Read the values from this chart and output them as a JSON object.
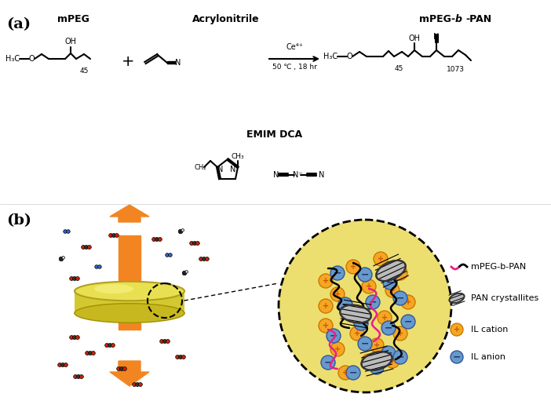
{
  "bg_color": "#ffffff",
  "panel_a_label": "(a)",
  "panel_b_label": "(b)",
  "label_fontsize": 14,
  "title_a1": "mPEG",
  "title_a2": "Acrylonitrile",
  "title_a3": "mPEG-",
  "title_a3b": "b",
  "title_a3c": "-PAN",
  "reaction_condition_1": "Ce⁴⁺",
  "reaction_condition_2": "50 ℃ , 18 hr",
  "emim_dca_label": "EMIM DCA",
  "legend_labels": [
    "mPEG-b-PAN",
    "PAN crystallites",
    "IL cation",
    "IL anion"
  ],
  "orange_color": "#F28522",
  "yellow_bg": "#E8E070",
  "pink_color": "#E91E8C",
  "blue_color": "#5B9BD5",
  "red_color": "#CC0000",
  "dark_gray": "#404040",
  "light_orange": "#F5A623"
}
